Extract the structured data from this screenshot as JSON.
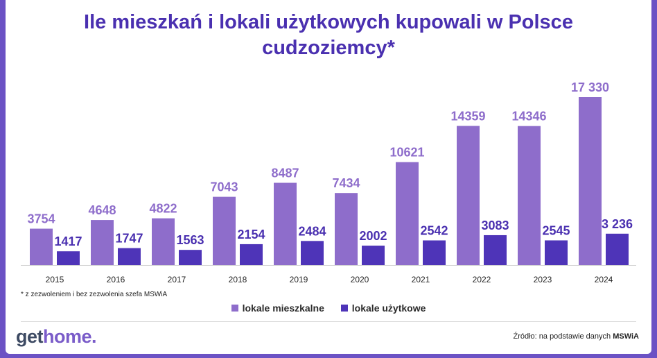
{
  "title_line1": "Ile mieszkań i lokali użytkowych kupowali w Polsce",
  "title_line2": "cudzoziemcy*",
  "footnote": "* z zezwoleniem i bez zezwolenia szefa MSWiA",
  "source_prefix": "Źródło: na podstawie danych",
  "source_bold": "MSWiA",
  "logo_part1": "get",
  "logo_part2": "home.",
  "colors": {
    "residential": "#8e6dcb",
    "commercial": "#4e34b8",
    "label": "#8e6dcb",
    "label_dark": "#4a30b0",
    "frame": "#6b52c4"
  },
  "chart_data": {
    "type": "bar",
    "categories": [
      "2015",
      "2016",
      "2017",
      "2018",
      "2019",
      "2020",
      "2021",
      "2022",
      "2023",
      "2024"
    ],
    "series": [
      {
        "name": "lokale mieszkalne",
        "values": [
          3754,
          4648,
          4822,
          7043,
          8487,
          7434,
          10621,
          14359,
          14346,
          17330
        ],
        "labels": [
          "3754",
          "4648",
          "4822",
          "7043",
          "8487",
          "7434",
          "10621",
          "14359",
          "14346",
          "17 330"
        ]
      },
      {
        "name": "lokale użytkowe",
        "values": [
          1417,
          1747,
          1563,
          2154,
          2484,
          2002,
          2542,
          3083,
          2545,
          3236
        ],
        "labels": [
          "1417",
          "1747",
          "1563",
          "2154",
          "2484",
          "2002",
          "2542",
          "3083",
          "2545",
          "3 236"
        ]
      }
    ],
    "legend": "bottom-center",
    "grid": false
  }
}
